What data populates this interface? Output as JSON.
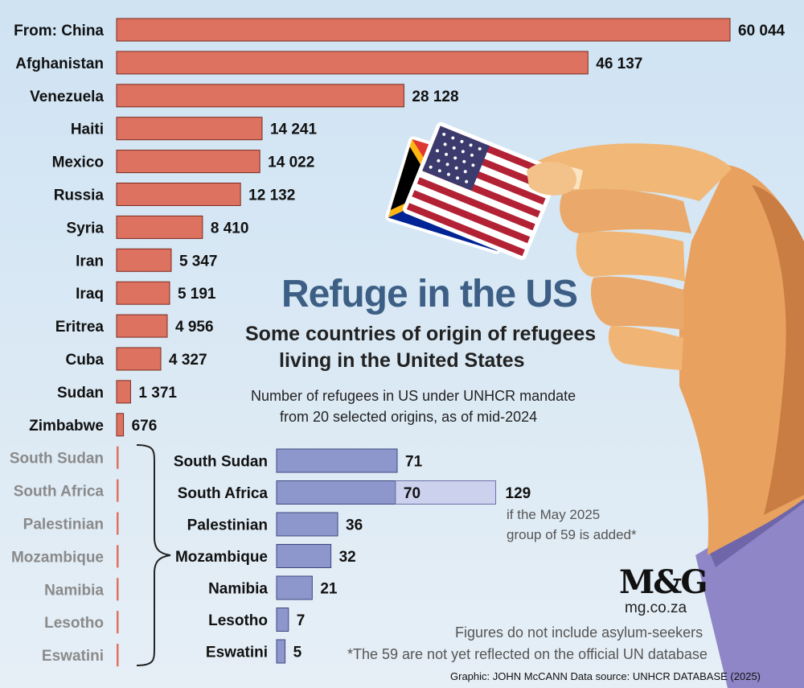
{
  "header": {
    "title": "Refuge in the US",
    "subtitle_line1": "Some countries of origin of refugees",
    "subtitle_line2": "living in the United States",
    "desc_line1": "Number of refugees in US under UNHCR mandate",
    "desc_line2": "from 20 selected origins, as of mid-2024"
  },
  "colors": {
    "main_bar": "#de7260",
    "african_bar": "#8d97cc",
    "added_bar": "#ccd1ee",
    "muted_label": "#8a8a8a",
    "title": "#3d5f85"
  },
  "annotations": {
    "added_total": "129",
    "added_note_line1": "if the May 2025",
    "added_note_line2": "group of 59 is added*"
  },
  "footer": {
    "logo": "M&G",
    "site": "mg.co.za",
    "note1": "Figures do not include asylum-seekers",
    "note2": "*The 59 are not yet reflected on the official UN database",
    "credit": "Graphic: JOHN McCANN  Data source: UNHCR DATABASE (2025)"
  },
  "illustration": {
    "icons": [
      "hand-icon",
      "us-flag-card-icon",
      "south-africa-flag-card-icon"
    ]
  },
  "chart_data": [
    {
      "type": "bar",
      "orientation": "horizontal",
      "first_label_prefix": "From:",
      "categories": [
        "China",
        "Afghanistan",
        "Venezuela",
        "Haiti",
        "Mexico",
        "Russia",
        "Syria",
        "Iran",
        "Iraq",
        "Eritrea",
        "Cuba",
        "Sudan",
        "Zimbabwe",
        "South Sudan",
        "South Africa",
        "Palestinian",
        "Mozambique",
        "Namibia",
        "Lesotho",
        "Eswatini"
      ],
      "values": [
        60044,
        46137,
        28128,
        14241,
        14022,
        12132,
        8410,
        5347,
        5191,
        4956,
        4327,
        1371,
        676,
        71,
        70,
        36,
        32,
        21,
        7,
        5
      ],
      "value_labels": [
        "60 044",
        "46 137",
        "28 128",
        "14 241",
        "14 022",
        "12 132",
        "8 410",
        "5 347",
        "5 191",
        "4 956",
        "4 327",
        "1 371",
        "676",
        "",
        "",
        "",
        "",
        "",
        "",
        ""
      ],
      "xlim": [
        0,
        60044
      ]
    },
    {
      "type": "bar",
      "orientation": "horizontal",
      "categories": [
        "South Sudan",
        "South Africa",
        "Palestinian",
        "Mozambique",
        "Namibia",
        "Lesotho",
        "Eswatini"
      ],
      "values": [
        71,
        70,
        36,
        32,
        21,
        7,
        5
      ],
      "value_labels": [
        "71",
        "70",
        "36",
        "32",
        "21",
        "7",
        "5"
      ],
      "stacked_extra": [
        0,
        59,
        0,
        0,
        0,
        0,
        0
      ],
      "xlim": [
        0,
        71
      ]
    }
  ]
}
